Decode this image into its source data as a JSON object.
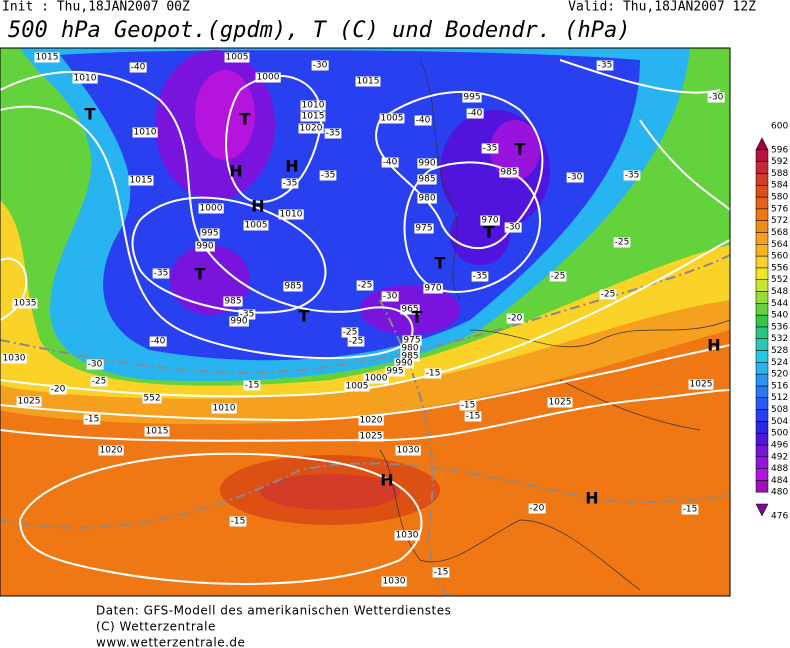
{
  "header": {
    "init": "Init : Thu,18JAN2007 00Z",
    "valid": "Valid: Thu,18JAN2007 12Z",
    "title": "500 hPa Geopot.(gpdm), T (C) und Bodendr. (hPa)"
  },
  "colorbar": {
    "levels": [
      476,
      480,
      484,
      488,
      492,
      496,
      500,
      504,
      508,
      512,
      516,
      520,
      524,
      528,
      532,
      536,
      540,
      544,
      548,
      552,
      556,
      560,
      564,
      568,
      572,
      576,
      580,
      584,
      588,
      592,
      596,
      600
    ],
    "colors": [
      "#780a8c",
      "#a00fb4",
      "#b414dc",
      "#9614dc",
      "#7814dc",
      "#5014dc",
      "#2828e6",
      "#2840f0",
      "#285af0",
      "#2878f0",
      "#2896f0",
      "#28b4f0",
      "#28c8dc",
      "#28c8b4",
      "#28c882",
      "#32c846",
      "#64d23c",
      "#96dc32",
      "#c8e632",
      "#f0e628",
      "#fad228",
      "#f5b41e",
      "#f5a01e",
      "#f08c14",
      "#f07814",
      "#e66414",
      "#dc5014",
      "#d23c28",
      "#c8283c",
      "#b4143c",
      "#a0003c"
    ]
  },
  "map": {
    "labels": [
      "1015",
      "1010",
      "-40",
      "1005",
      "1000",
      "-30",
      "1015",
      "1010",
      "1015",
      "1020",
      "T",
      "1010",
      "T",
      "-35",
      "1005",
      "-40",
      "995",
      "-40",
      "-35",
      "T",
      "-35",
      "-30",
      "H",
      "H",
      "1015",
      "-35",
      "-35",
      "-40",
      "990",
      "985",
      "985",
      "-30",
      "-35",
      "1000",
      "H",
      "1010",
      "1005",
      "980",
      "970",
      "-30",
      "T",
      "995",
      "975",
      "990",
      "-25",
      "-35",
      "T",
      "T",
      "985",
      "-35",
      "-25",
      "-25",
      "-25",
      "970",
      "-30",
      "1035",
      "985",
      "-35",
      "990",
      "T",
      "965",
      "T",
      "-20",
      "-40",
      "-25",
      "-25",
      "975",
      "980",
      "985",
      "990",
      "995",
      "1000",
      "1005",
      "-15",
      "1030",
      "-30",
      "-25",
      "-20",
      "-15",
      "552",
      "H",
      "1025",
      "1025",
      "1010",
      "-15",
      "-15",
      "1025",
      "-15",
      "1020",
      "1015",
      "1025",
      "1020",
      "1030",
      "H",
      "H",
      "-20",
      "-15",
      "-15",
      "1030",
      "-15",
      "1030"
    ]
  },
  "footer": {
    "lines": [
      "Daten: GFS-Modell des amerikanischen Wetterdienstes",
      "(C) Wetterzentrale",
      "www.wetterzentrale.de"
    ]
  }
}
